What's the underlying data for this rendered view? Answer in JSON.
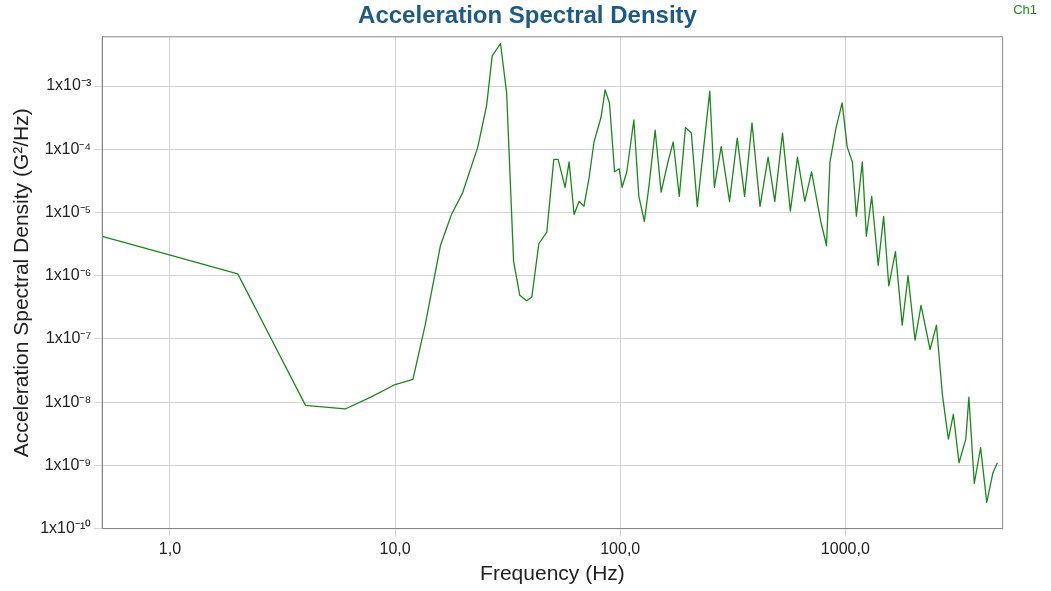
{
  "chart_data": {
    "type": "line",
    "title": "Acceleration Spectral Density",
    "xlabel": "Frequency (Hz)",
    "ylabel": "Acceleration Spectral Density (G²/Hz)",
    "log": "xy",
    "grid": true,
    "legend": "top right",
    "marker": "none",
    "line_style": "solid",
    "xlim": [
      0.5,
      5000
    ],
    "xticks": [
      {
        "value": 1,
        "label": "1,0"
      },
      {
        "value": 10,
        "label": "10,0"
      },
      {
        "value": 100,
        "label": "100,0"
      },
      {
        "value": 1000,
        "label": "1000,0"
      }
    ],
    "ylim": [
      1e-10,
      0.006
    ],
    "yticks": [
      {
        "value": 1e-10,
        "label": "1x10⁻¹⁰"
      },
      {
        "value": 1e-09,
        "label": "1x10⁻⁹"
      },
      {
        "value": 1e-08,
        "label": "1x10⁻⁸"
      },
      {
        "value": 1e-07,
        "label": "1x10⁻⁷"
      },
      {
        "value": 1e-06,
        "label": "1x10⁻⁶"
      },
      {
        "value": 1e-05,
        "label": "1x10⁻⁵"
      },
      {
        "value": 0.0001,
        "label": "1x10⁻⁴"
      },
      {
        "value": 0.001,
        "label": "1x10⁻³"
      }
    ],
    "series": [
      {
        "name": "Ch1",
        "color": "#1a8a1a",
        "x": [
          0.5,
          2,
          4,
          6,
          7.8,
          10,
          12,
          13.6,
          15.9,
          17.8,
          19.9,
          23.3,
          25.5,
          27,
          29.4,
          31.3,
          33.6,
          35.8,
          38.4,
          40.5,
          43.5,
          47.2,
          50.7,
          53,
          56.9,
          59.3,
          62.4,
          65.7,
          69,
          72.8,
          76.5,
          82.2,
          85.7,
          89.6,
          94.4,
          99,
          102,
          107,
          115,
          121,
          128,
          134,
          143,
          152,
          163,
          172,
          183,
          195,
          207,
          220,
          250,
          262,
          281,
          306,
          331,
          357,
          385,
          418,
          454,
          486,
          526,
          570,
          613,
          661,
          708,
          778,
          825,
          855,
          910,
          968,
          1020,
          1075,
          1120,
          1190,
          1240,
          1310,
          1400,
          1480,
          1560,
          1670,
          1790,
          1900,
          2040,
          2170,
          2380,
          2540,
          2700,
          2870,
          3020,
          3200,
          3430,
          3540,
          3740,
          3990,
          4250,
          4520,
          4740
        ],
        "values": [
          4.2e-06,
          1.07e-06,
          8.9e-09,
          7.8e-09,
          1.2e-08,
          1.9e-08,
          2.3e-08,
          1.65e-07,
          3e-06,
          9.3e-06,
          2e-05,
          0.000108,
          0.00049,
          0.003,
          0.0047,
          0.00078,
          1.7e-06,
          4.9e-07,
          4e-07,
          4.6e-07,
          3.2e-06,
          4.9e-06,
          6.9e-05,
          6.9e-05,
          2.5e-05,
          6.3e-05,
          9.3e-06,
          1.5e-05,
          1.25e-05,
          3.6e-05,
          0.00013,
          0.00032,
          0.00087,
          0.00054,
          4.4e-05,
          4.9e-05,
          2.5e-05,
          4.4e-05,
          0.00029,
          1.8e-05,
          7.2e-06,
          2.5e-05,
          0.0002,
          2.1e-05,
          6.3e-05,
          0.00013,
          1.8e-05,
          0.00022,
          0.00018,
          1.25e-05,
          0.00083,
          2.5e-05,
          0.00011,
          1.5e-05,
          0.00015,
          1.8e-05,
          0.00026,
          1.25e-05,
          7.5e-05,
          1.5e-05,
          0.00018,
          1.05e-05,
          7.5e-05,
          1.5e-05,
          4.4e-05,
          7.2e-06,
          3e-06,
          6.3e-05,
          0.00022,
          0.00054,
          0.000108,
          6.3e-05,
          8.7e-06,
          6.3e-05,
          4.2e-06,
          1.8e-05,
          1.45e-06,
          8.7e-06,
          6.9e-07,
          2.4e-06,
          1.65e-07,
          1e-06,
          9.6e-08,
          3.4e-07,
          6.8e-08,
          1.65e-07,
          1.3e-08,
          2.6e-09,
          6.4e-09,
          1.1e-09,
          2.6e-09,
          1.2e-08,
          5.2e-10,
          1.9e-09,
          2.6e-10,
          7.5e-10,
          1.1e-09
        ]
      }
    ]
  }
}
